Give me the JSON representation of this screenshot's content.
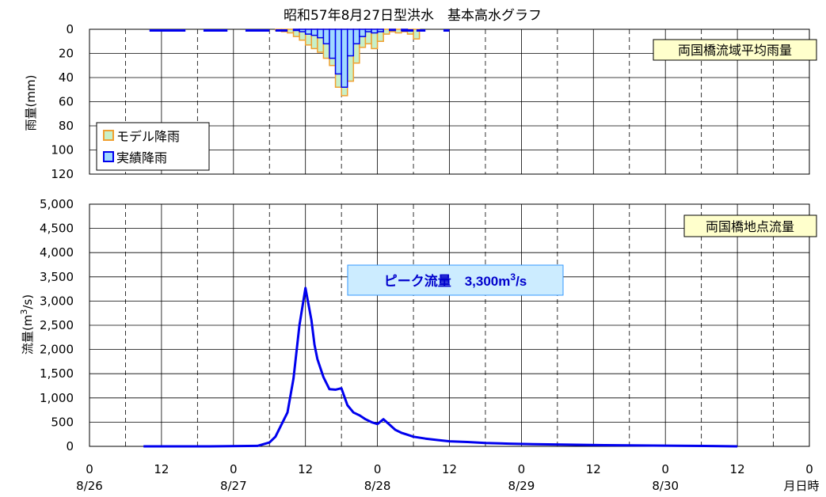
{
  "chart_data": [
    {
      "type": "bar",
      "title": "昭和57年8月27日型洪水　基本高水グラフ",
      "ylabel": "雨量(mm)",
      "ylim": [
        0,
        120
      ],
      "yticks": [
        "0",
        "20",
        "40",
        "60",
        "80",
        "100",
        "120"
      ],
      "inverted_y": true,
      "grid": true,
      "box_label": "両国橋流域平均雨量",
      "legend": {
        "position": "bottom-left",
        "entries": [
          "モデル降雨",
          "実績降雨"
        ]
      },
      "x_unit": "hours since 8/26 0:00",
      "series": [
        {
          "name": "モデル降雨",
          "color": "#f0a030",
          "fill": "#c8f0c8",
          "start_hour": 31,
          "values": [
            1,
            2,
            3,
            6,
            9,
            13,
            16,
            19,
            24,
            30,
            48,
            55,
            43,
            28,
            15,
            12,
            16,
            10,
            4,
            2,
            3,
            2,
            4,
            8
          ]
        },
        {
          "name": "実績降雨",
          "color": "#0000ee",
          "fill": "#a0d8ff",
          "start_hour": 31,
          "values": [
            0,
            0,
            0,
            1,
            2,
            4,
            5,
            7,
            12,
            24,
            37,
            48,
            22,
            12,
            6,
            2,
            3,
            2,
            0,
            1,
            0,
            1,
            0,
            0
          ]
        }
      ]
    },
    {
      "type": "line",
      "ylabel": "流量(m3/s)",
      "ylabel_main": "流量(m",
      "ylabel_sup": "3",
      "ylabel_end": "/s)",
      "ylim": [
        0,
        5000
      ],
      "yticks": [
        "0",
        "500",
        "1,000",
        "1,500",
        "2,000",
        "2,500",
        "3,000",
        "3,500",
        "4,000",
        "4,500",
        "5,000"
      ],
      "grid": true,
      "box_label": "両国橋地点流量",
      "peak_label": {
        "prefix": "ピーク流量　3,300m",
        "sup": "3",
        "suffix": "/s"
      },
      "xlim": [
        0,
        120
      ],
      "x_ticks": [
        "0",
        "12",
        "0",
        "12",
        "0",
        "12",
        "0",
        "12",
        "0",
        "12",
        "0"
      ],
      "date_labels": [
        "8/26",
        "8/27",
        "8/28",
        "8/29",
        "8/30"
      ],
      "x_end_label": "月日時",
      "series": [
        {
          "name": "流量",
          "color": "#0000ee",
          "x": [
            9,
            20,
            28,
            30,
            31,
            33,
            34,
            35,
            36,
            37,
            37.5,
            38,
            39,
            40,
            41,
            42,
            43,
            44,
            45,
            46,
            47,
            48,
            49,
            50,
            51,
            52,
            53,
            54,
            56,
            58,
            60,
            63,
            66,
            70,
            74,
            80,
            86,
            92,
            98,
            104,
            108
          ],
          "y": [
            0,
            0,
            10,
            80,
            200,
            700,
            1400,
            2500,
            3270,
            2600,
            2100,
            1800,
            1430,
            1180,
            1170,
            1200,
            850,
            700,
            640,
            560,
            500,
            460,
            560,
            450,
            340,
            280,
            240,
            200,
            160,
            130,
            105,
            90,
            70,
            55,
            45,
            35,
            25,
            18,
            12,
            6,
            0
          ]
        }
      ]
    }
  ]
}
